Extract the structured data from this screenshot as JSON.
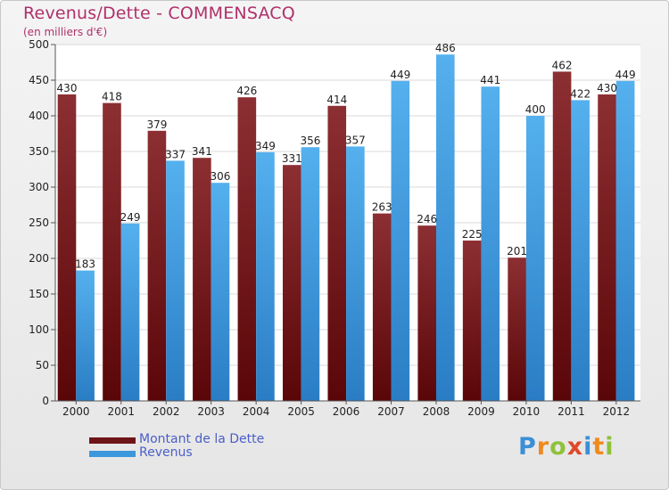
{
  "chart_data": {
    "type": "bar",
    "title": "Revenus/Dette - COMMENSACQ",
    "subtitle": "(en milliers d'€)",
    "categories": [
      "2000",
      "2001",
      "2002",
      "2003",
      "2004",
      "2005",
      "2006",
      "2007",
      "2008",
      "2009",
      "2010",
      "2011",
      "2012"
    ],
    "series": [
      {
        "name": "Montant de la Dette",
        "values": [
          430,
          418,
          379,
          341,
          426,
          331,
          414,
          263,
          246,
          225,
          201,
          462,
          430
        ],
        "color": "#6e1418"
      },
      {
        "name": "Revenus",
        "values": [
          183,
          249,
          337,
          306,
          349,
          356,
          357,
          449,
          486,
          441,
          400,
          422,
          449
        ],
        "color": "#3d97dc"
      }
    ],
    "ylim": [
      0,
      500
    ],
    "yticks": [
      0,
      50,
      100,
      150,
      200,
      250,
      300,
      350,
      400,
      450,
      500
    ],
    "grid": true,
    "legend": "bottom-left"
  },
  "logo": {
    "text": "Proxiti",
    "letters": [
      "P",
      "r",
      "o",
      "x",
      "i",
      "t",
      "i"
    ],
    "colors": [
      "#3b8fd6",
      "#f08a1c",
      "#8fc23a",
      "#e0482a",
      "#3b8fd6",
      "#f08a1c",
      "#8fc23a"
    ]
  }
}
